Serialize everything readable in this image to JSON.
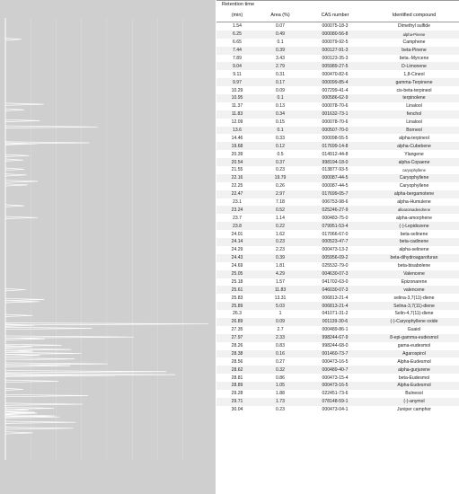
{
  "table": {
    "top_header": "Retention time",
    "headers": [
      "(min)",
      "Area (%)",
      "CAS number",
      "Identified compound"
    ],
    "rows": [
      [
        "1.54",
        "0.07",
        "000075-18-3",
        "Dimethyl sulfide"
      ],
      [
        "6.25",
        "0.49",
        "000080-56-8",
        "alpha-Pinene"
      ],
      [
        "6.65",
        "0.1",
        "000079-92-5",
        "Camphene"
      ],
      [
        "7.44",
        "0.39",
        "000127-91-3",
        "beta-Pinene"
      ],
      [
        "7.89",
        "3.43",
        "000123-35-3",
        "beta.-Myrcene"
      ],
      [
        "9.04",
        "2.79",
        "005989-27-5",
        "D-Limonene"
      ],
      [
        "9.11",
        "0.31",
        "000470-82-6",
        "1,8-Cineol"
      ],
      [
        "9.97",
        "0.17",
        "000099-85-4",
        "gamma-Terpinene"
      ],
      [
        "10.29",
        "0.09",
        "007299-41-4",
        "cis-beta-terpineol"
      ],
      [
        "10.95",
        "0.1",
        "000586-62-9",
        "terpinolene"
      ],
      [
        "11.37",
        "0.13",
        "000078-70-6",
        "Linalool"
      ],
      [
        "11.83",
        "0.34",
        "001632-73-1",
        "fenchol"
      ],
      [
        "12.09",
        "0.15",
        "000078-70-6",
        "Linalool"
      ],
      [
        "13.6",
        "0.1",
        "000507-70-0",
        "Borneol"
      ],
      [
        "14.46",
        "0.33",
        "000098-55-5",
        "alpha-terpineol"
      ],
      [
        "19.68",
        "0.12",
        "017699-14-8",
        "alpha-Cubebene"
      ],
      [
        "20.39",
        "0.5",
        "014912-44-8",
        "Ylangene"
      ],
      [
        "20.54",
        "0.37",
        "998194-18-0",
        "alpha-Copaene"
      ],
      [
        "21.55",
        "0.23",
        "013877-93-5",
        "caryophyllene"
      ],
      [
        "22.16",
        "19.79",
        "000087-44-5",
        "Caryophyllene"
      ],
      [
        "22.25",
        "0.26",
        "000087-44-5",
        "Caryophyllene"
      ],
      [
        "22.47",
        "2.97",
        "017699-05-7",
        "alpha-bergamotene"
      ],
      [
        "23.1",
        "7.18",
        "006753-98-6",
        "alpha-Humulene"
      ],
      [
        "23.24",
        "0.52",
        "025246-27-9",
        "alloaromadendrene"
      ],
      [
        "23.7",
        "1.14",
        "000483-75-0",
        "alpha-amorphene"
      ],
      [
        "23.8",
        "0.22",
        "079951-53-4",
        "(-)-Lepidozene"
      ],
      [
        "24.01",
        "1.62",
        "017066-67-0",
        "beta-selinene"
      ],
      [
        "24.14",
        "0.23",
        "000523-47-7",
        "beta-cadinene"
      ],
      [
        "24.29",
        "2.23",
        "000473-13-2",
        "alpha-selinene"
      ],
      [
        "24.43",
        "0.39",
        "005956-09-2",
        "beta-dihydroagarofuran"
      ],
      [
        "24.69",
        "1.81",
        "025532-79-0",
        "beta-bisabolene"
      ],
      [
        "25.05",
        "4.29",
        "004630-07-3",
        "Valencene"
      ],
      [
        "25.18",
        "1.57",
        "041702-63-0",
        "Epizonarene"
      ],
      [
        "25.61",
        "11.83",
        "046030-07-3",
        "valencene"
      ],
      [
        "25.83",
        "13.31",
        "006813-21-4",
        "selina-3,7(11)-diene"
      ],
      [
        "25.89",
        "5.03",
        "006813-21-4",
        "Selina-3,7(11)-diene"
      ],
      [
        "26.3",
        "1",
        "041071-31-2",
        "Selin-4,7(11)-diene"
      ],
      [
        "26.89",
        "0.09",
        "001139-30-6",
        "(-)-Caryophyllene oxide"
      ],
      [
        "27.35",
        "2.7",
        "000489-86-1",
        "Guaiol"
      ],
      [
        "27.97",
        "2.33",
        "998244-67-9",
        "8-epi-gamma-eudesmol"
      ],
      [
        "28.26",
        "0.83",
        "998244-68-0",
        "gama-eudesmol"
      ],
      [
        "28.38",
        "0.16",
        "001460-73-7",
        "Agarospirol"
      ],
      [
        "28.56",
        "0.27",
        "000473-16-5",
        "Alpha-Eudesmol"
      ],
      [
        "28.62",
        "0.32",
        "000489-40-7",
        "alpha-gurjurene"
      ],
      [
        "28.81",
        "0.86",
        "000473-15-4",
        "beta-Eudesmol"
      ],
      [
        "28.89",
        "1.05",
        "000473-16-5",
        "Alpha-Eudesmol"
      ],
      [
        "29.28",
        "1.88",
        "022451-73-6",
        "Bulnesol"
      ],
      [
        "29.71",
        "1.73",
        "078148-59-1",
        "(-)-anymol"
      ],
      [
        "30.04",
        "0.23",
        "000473-04-1",
        "Juniper camphor"
      ]
    ]
  },
  "chromatogram": {
    "colors": {
      "background": "#cfcfcf",
      "trace": "#ffffff",
      "grid": "#dcdcdc"
    },
    "peaks": [
      {
        "t": 1.54,
        "area": 0.07
      },
      {
        "t": 6.25,
        "area": 0.49
      },
      {
        "t": 6.65,
        "area": 0.1
      },
      {
        "t": 7.44,
        "area": 0.39
      },
      {
        "t": 7.89,
        "area": 3.43
      },
      {
        "t": 9.04,
        "area": 2.79
      },
      {
        "t": 9.11,
        "area": 0.31
      },
      {
        "t": 9.97,
        "area": 0.17
      },
      {
        "t": 10.29,
        "area": 0.09
      },
      {
        "t": 10.95,
        "area": 0.1
      },
      {
        "t": 11.37,
        "area": 0.13
      },
      {
        "t": 11.83,
        "area": 0.34
      },
      {
        "t": 12.09,
        "area": 0.15
      },
      {
        "t": 13.6,
        "area": 0.1
      },
      {
        "t": 14.46,
        "area": 0.33
      },
      {
        "t": 19.68,
        "area": 0.12
      },
      {
        "t": 20.39,
        "area": 0.5
      },
      {
        "t": 20.54,
        "area": 0.37
      },
      {
        "t": 21.55,
        "area": 0.23
      },
      {
        "t": 22.16,
        "area": 19.79
      },
      {
        "t": 22.25,
        "area": 0.26
      },
      {
        "t": 22.47,
        "area": 2.97
      },
      {
        "t": 23.1,
        "area": 7.18
      },
      {
        "t": 23.24,
        "area": 0.52
      },
      {
        "t": 23.7,
        "area": 1.14
      },
      {
        "t": 23.8,
        "area": 0.22
      },
      {
        "t": 24.01,
        "area": 1.62
      },
      {
        "t": 24.14,
        "area": 0.23
      },
      {
        "t": 24.29,
        "area": 2.23
      },
      {
        "t": 24.43,
        "area": 0.39
      },
      {
        "t": 24.69,
        "area": 1.81
      },
      {
        "t": 25.05,
        "area": 4.29
      },
      {
        "t": 25.18,
        "area": 1.57
      },
      {
        "t": 25.61,
        "area": 11.83
      },
      {
        "t": 25.83,
        "area": 13.31
      },
      {
        "t": 25.89,
        "area": 5.03
      },
      {
        "t": 26.3,
        "area": 1
      },
      {
        "t": 26.89,
        "area": 0.09
      },
      {
        "t": 27.35,
        "area": 2.7
      },
      {
        "t": 27.97,
        "area": 2.33
      },
      {
        "t": 28.26,
        "area": 0.83
      },
      {
        "t": 28.38,
        "area": 0.16
      },
      {
        "t": 28.56,
        "area": 0.27
      },
      {
        "t": 28.62,
        "area": 0.32
      },
      {
        "t": 28.81,
        "area": 0.86
      },
      {
        "t": 28.89,
        "area": 1.05
      },
      {
        "t": 29.28,
        "area": 1.88
      },
      {
        "t": 29.71,
        "area": 1.73
      },
      {
        "t": 30.04,
        "area": 0.23
      }
    ]
  }
}
